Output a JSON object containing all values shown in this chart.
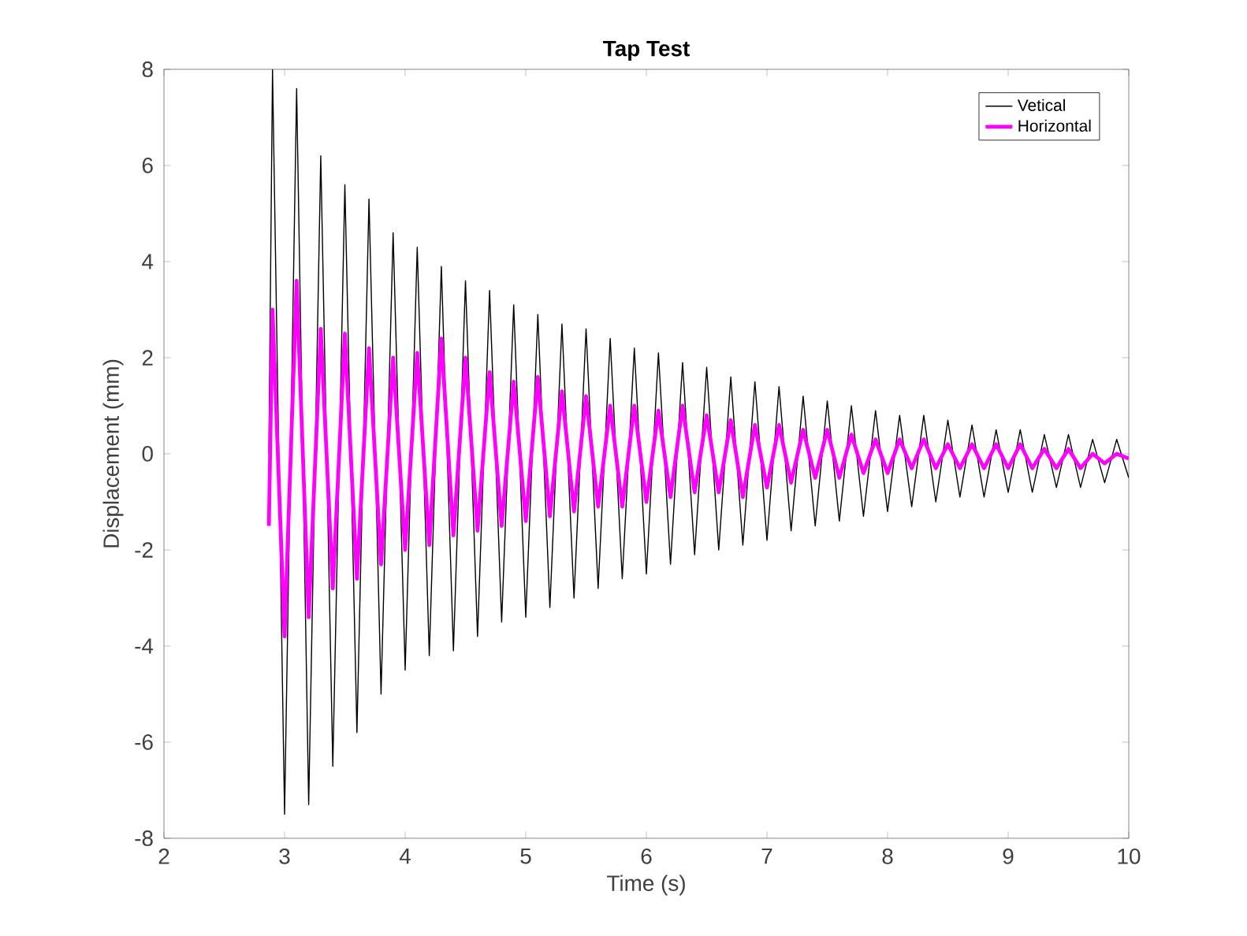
{
  "chart_data": {
    "type": "line",
    "title": "Tap Test",
    "xlabel": "Time (s)",
    "ylabel": "Displacement (mm)",
    "x": [
      2.87,
      2.9,
      3.0,
      3.1,
      3.2,
      3.3,
      3.4,
      3.5,
      3.6,
      3.7,
      3.8,
      3.9,
      4.0,
      4.1,
      4.2,
      4.3,
      4.4,
      4.5,
      4.6,
      4.7,
      4.8,
      4.9,
      5.0,
      5.1,
      5.2,
      5.3,
      5.4,
      5.5,
      5.6,
      5.7,
      5.8,
      5.9,
      6.0,
      6.1,
      6.2,
      6.3,
      6.4,
      6.5,
      6.6,
      6.7,
      6.8,
      6.9,
      7.0,
      7.1,
      7.2,
      7.3,
      7.4,
      7.5,
      7.6,
      7.7,
      7.8,
      7.9,
      8.0,
      8.1,
      8.2,
      8.3,
      8.4,
      8.5,
      8.6,
      8.7,
      8.8,
      8.9,
      9.0,
      9.1,
      9.2,
      9.3,
      9.4,
      9.5,
      9.6,
      9.7,
      9.8,
      9.9,
      10.0
    ],
    "series": [
      {
        "name": "Vetical",
        "color": "#000000",
        "values": [
          0,
          8,
          -7.5,
          7.6,
          -7.3,
          6.2,
          -6.5,
          5.6,
          -5.8,
          5.3,
          -5.0,
          4.6,
          -4.5,
          4.3,
          -4.2,
          3.9,
          -4.1,
          3.6,
          -3.8,
          3.4,
          -3.5,
          3.1,
          -3.4,
          2.9,
          -3.2,
          2.7,
          -3.0,
          2.6,
          -2.8,
          2.4,
          -2.6,
          2.2,
          -2.5,
          2.1,
          -2.3,
          1.9,
          -2.1,
          1.8,
          -2.0,
          1.6,
          -1.9,
          1.5,
          -1.8,
          1.4,
          -1.6,
          1.2,
          -1.5,
          1.1,
          -1.4,
          1.0,
          -1.3,
          0.9,
          -1.2,
          0.8,
          -1.1,
          0.8,
          -1.0,
          0.7,
          -0.9,
          0.6,
          -0.9,
          0.5,
          -0.8,
          0.5,
          -0.8,
          0.4,
          -0.7,
          0.4,
          -0.7,
          0.3,
          -0.6,
          0.3,
          -0.5
        ]
      },
      {
        "name": "Horizontal",
        "color": "#ff00ff",
        "values": [
          -1.5,
          3.0,
          -3.8,
          3.6,
          -3.4,
          2.6,
          -2.8,
          2.5,
          -2.6,
          2.2,
          -2.3,
          2.0,
          -2.0,
          2.1,
          -1.9,
          2.4,
          -1.7,
          2.0,
          -1.6,
          1.7,
          -1.5,
          1.5,
          -1.4,
          1.6,
          -1.3,
          1.3,
          -1.2,
          1.2,
          -1.1,
          1.0,
          -1.1,
          1.0,
          -1.0,
          0.9,
          -0.9,
          1.0,
          -0.8,
          0.8,
          -0.8,
          0.7,
          -0.9,
          0.6,
          -0.7,
          0.6,
          -0.6,
          0.5,
          -0.5,
          0.5,
          -0.5,
          0.4,
          -0.4,
          0.3,
          -0.4,
          0.3,
          -0.3,
          0.3,
          -0.3,
          0.2,
          -0.3,
          0.2,
          -0.3,
          0.2,
          -0.3,
          0.2,
          -0.3,
          0.1,
          -0.3,
          0.1,
          -0.3,
          0.0,
          -0.2,
          0.0,
          -0.1
        ]
      }
    ],
    "xlim": [
      2,
      10
    ],
    "xticks": [
      2,
      3,
      4,
      5,
      6,
      7,
      8,
      9,
      10
    ],
    "ylim": [
      -8,
      8
    ],
    "yticks": [
      -8,
      -6,
      -4,
      -2,
      0,
      2,
      4,
      6,
      8
    ],
    "legend": "top right",
    "grid": false,
    "marker": "none",
    "line_style": "solid"
  }
}
